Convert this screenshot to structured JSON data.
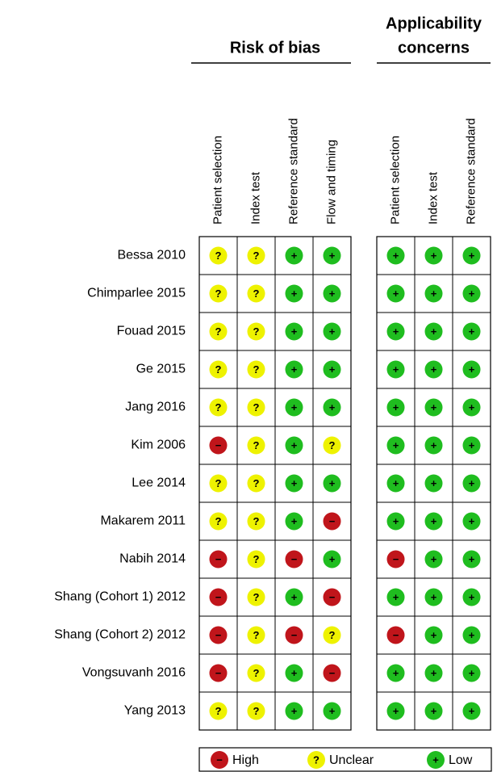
{
  "groups": [
    {
      "title": [
        "Risk of bias"
      ],
      "columns": [
        "Patient selection",
        "Index test",
        "Reference standard",
        "Flow and timing"
      ]
    },
    {
      "title": [
        "Applicability",
        "concerns"
      ],
      "columns": [
        "Patient selection",
        "Index test",
        "Reference standard"
      ]
    }
  ],
  "studies": [
    {
      "name": "Bessa 2010",
      "ratings": [
        [
          "?",
          "?",
          "+",
          "+"
        ],
        [
          "+",
          "+",
          "+"
        ]
      ]
    },
    {
      "name": "Chimparlee 2015",
      "ratings": [
        [
          "?",
          "?",
          "+",
          "+"
        ],
        [
          "+",
          "+",
          "+"
        ]
      ]
    },
    {
      "name": "Fouad 2015",
      "ratings": [
        [
          "?",
          "?",
          "+",
          "+"
        ],
        [
          "+",
          "+",
          "+"
        ]
      ]
    },
    {
      "name": "Ge 2015",
      "ratings": [
        [
          "?",
          "?",
          "+",
          "+"
        ],
        [
          "+",
          "+",
          "+"
        ]
      ]
    },
    {
      "name": "Jang 2016",
      "ratings": [
        [
          "?",
          "?",
          "+",
          "+"
        ],
        [
          "+",
          "+",
          "+"
        ]
      ]
    },
    {
      "name": "Kim 2006",
      "ratings": [
        [
          "−",
          "?",
          "+",
          "?"
        ],
        [
          "+",
          "+",
          "+"
        ]
      ]
    },
    {
      "name": "Lee 2014",
      "ratings": [
        [
          "?",
          "?",
          "+",
          "+"
        ],
        [
          "+",
          "+",
          "+"
        ]
      ]
    },
    {
      "name": "Makarem 2011",
      "ratings": [
        [
          "?",
          "?",
          "+",
          "−"
        ],
        [
          "+",
          "+",
          "+"
        ]
      ]
    },
    {
      "name": "Nabih 2014",
      "ratings": [
        [
          "−",
          "?",
          "−",
          "+"
        ],
        [
          "−",
          "+",
          "+"
        ]
      ]
    },
    {
      "name": "Shang (Cohort 1) 2012",
      "ratings": [
        [
          "−",
          "?",
          "+",
          "−"
        ],
        [
          "+",
          "+",
          "+"
        ]
      ]
    },
    {
      "name": "Shang (Cohort 2) 2012",
      "ratings": [
        [
          "−",
          "?",
          "−",
          "?"
        ],
        [
          "−",
          "+",
          "+"
        ]
      ]
    },
    {
      "name": "Vongsuvanh 2016",
      "ratings": [
        [
          "−",
          "?",
          "+",
          "−"
        ],
        [
          "+",
          "+",
          "+"
        ]
      ]
    },
    {
      "name": "Yang 2013",
      "ratings": [
        [
          "?",
          "?",
          "+",
          "+"
        ],
        [
          "+",
          "+",
          "+"
        ]
      ]
    }
  ],
  "legend": [
    {
      "symbol": "−",
      "label": "High",
      "color": "#c0151b"
    },
    {
      "symbol": "?",
      "label": "Unclear",
      "color": "#eef200"
    },
    {
      "symbol": "+",
      "label": "Low",
      "color": "#1fbd1f"
    }
  ]
}
